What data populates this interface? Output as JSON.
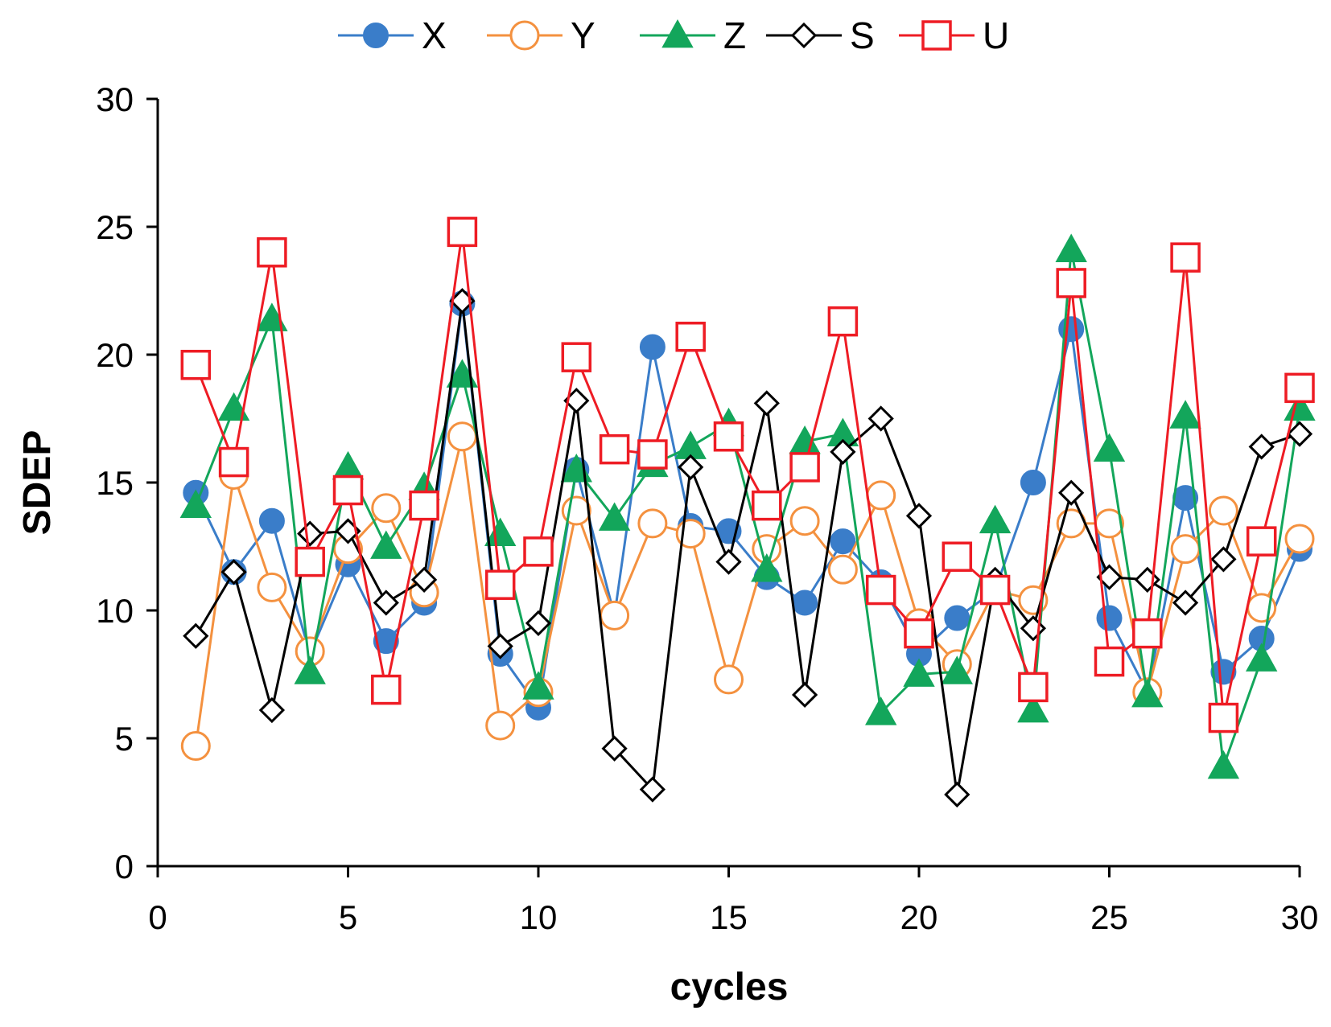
{
  "chart_data": {
    "type": "line",
    "title": "",
    "xlabel": "cycles",
    "ylabel": "SDEP",
    "xlim": [
      0,
      30
    ],
    "ylim": [
      0,
      30
    ],
    "xticks": [
      0,
      5,
      10,
      15,
      20,
      25,
      30
    ],
    "yticks": [
      0,
      5,
      10,
      15,
      20,
      25,
      30
    ],
    "grid": false,
    "legend_position": "top",
    "x": [
      1,
      2,
      3,
      4,
      5,
      6,
      7,
      8,
      9,
      10,
      11,
      12,
      13,
      14,
      15,
      16,
      17,
      18,
      19,
      20,
      21,
      22,
      23,
      24,
      25,
      26,
      27,
      28,
      29,
      30
    ],
    "series": [
      {
        "name": "X",
        "color": "#3a7dc9",
        "marker": "filled-circle",
        "values": [
          14.6,
          11.5,
          13.5,
          8.3,
          11.8,
          8.8,
          10.3,
          22.0,
          8.3,
          6.2,
          15.5,
          9.8,
          20.3,
          13.3,
          13.1,
          11.3,
          10.3,
          12.7,
          11.1,
          8.3,
          9.7,
          10.8,
          15.0,
          21.0,
          9.7,
          6.8,
          14.4,
          7.6,
          8.9,
          12.4
        ]
      },
      {
        "name": "Y",
        "color": "#f4913f",
        "marker": "hollow-circle",
        "values": [
          4.7,
          15.3,
          10.9,
          8.4,
          12.4,
          14.0,
          10.7,
          16.8,
          5.5,
          6.8,
          13.9,
          9.8,
          13.4,
          13.0,
          7.3,
          12.4,
          13.5,
          11.6,
          14.5,
          9.5,
          7.9,
          10.8,
          10.4,
          13.4,
          13.4,
          6.8,
          12.4,
          13.9,
          10.1,
          12.8
        ]
      },
      {
        "name": "Z",
        "color": "#13a65b",
        "marker": "filled-triangle",
        "values": [
          14.1,
          17.9,
          21.4,
          7.6,
          15.6,
          12.5,
          14.8,
          19.2,
          13.0,
          7.0,
          15.5,
          13.6,
          15.7,
          16.4,
          17.3,
          11.6,
          16.6,
          16.9,
          6.0,
          7.5,
          7.6,
          13.5,
          6.1,
          24.1,
          16.3,
          6.7,
          17.6,
          3.9,
          8.1,
          17.9
        ]
      },
      {
        "name": "S",
        "color": "#000000",
        "marker": "hollow-diamond",
        "values": [
          9.0,
          11.5,
          6.1,
          13.0,
          13.1,
          10.3,
          11.2,
          22.1,
          8.6,
          9.5,
          18.2,
          4.6,
          3.0,
          15.6,
          11.9,
          18.1,
          6.7,
          16.2,
          17.5,
          13.7,
          2.8,
          11.2,
          9.3,
          14.6,
          11.3,
          11.2,
          10.3,
          12.0,
          16.4,
          16.9
        ]
      },
      {
        "name": "U",
        "color": "#ee1c24",
        "marker": "hollow-square",
        "values": [
          19.6,
          15.8,
          24.0,
          11.9,
          14.7,
          6.9,
          14.1,
          24.8,
          11.0,
          12.3,
          19.9,
          16.3,
          16.1,
          20.7,
          16.8,
          14.1,
          15.6,
          21.3,
          10.8,
          9.1,
          12.1,
          10.8,
          7.0,
          22.8,
          8.0,
          9.1,
          23.8,
          5.8,
          12.7,
          18.7
        ]
      }
    ]
  }
}
